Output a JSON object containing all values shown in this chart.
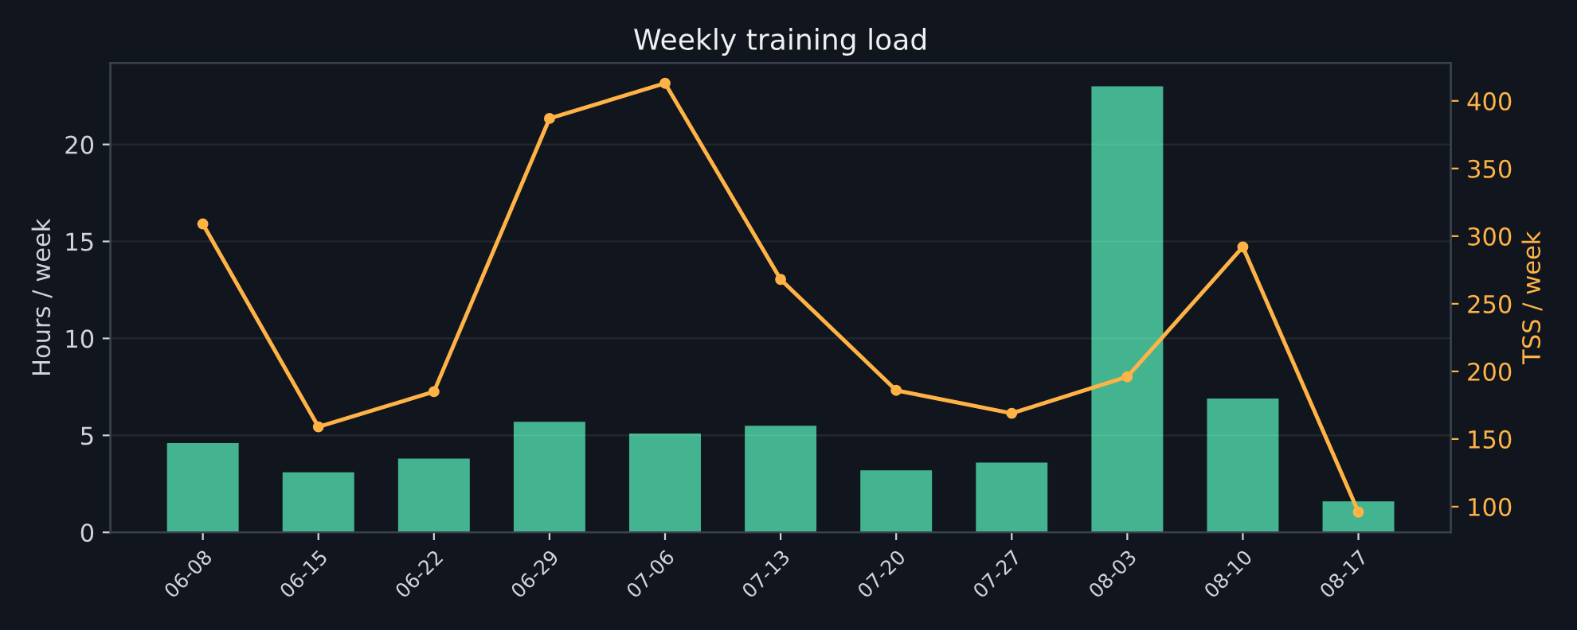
{
  "chart_data": {
    "type": "bar",
    "title": "Weekly training load",
    "ylabel": "Hours / week",
    "y2label": "TSS / week",
    "categories": [
      "06-08",
      "06-15",
      "06-22",
      "06-29",
      "07-06",
      "07-13",
      "07-20",
      "07-27",
      "08-03",
      "08-10",
      "08-17"
    ],
    "series": [
      {
        "color": "#43b48f",
        "values": [
          4.6,
          3.1,
          3.8,
          5.7,
          5.1,
          5.5,
          3.2,
          3.6,
          23.0,
          6.9,
          1.6
        ]
      },
      {
        "type": "line",
        "axis": "y2",
        "color": "#ffb347",
        "marker": "circle",
        "values": [
          309,
          159,
          185,
          387,
          413,
          268,
          186,
          169,
          196,
          292,
          96
        ]
      }
    ],
    "ylim": [
      0,
      24.2
    ],
    "yticks": [
      0,
      5,
      10,
      15,
      20
    ],
    "y2lim": [
      81,
      428
    ],
    "y2ticks": [
      100,
      150,
      200,
      250,
      300,
      350,
      400
    ],
    "grid": "y"
  }
}
